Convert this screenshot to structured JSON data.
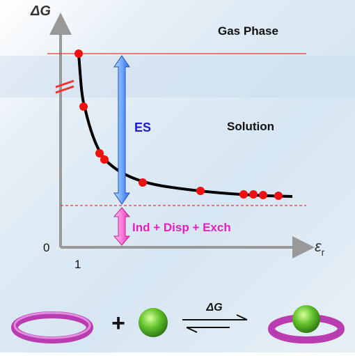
{
  "plot": {
    "y_axis_label": "ΔG",
    "x_axis_symbol": "ε",
    "x_axis_subscript": "r",
    "origin_label": "0",
    "x_marker_label": "1",
    "gas_label": "Gas Phase",
    "solution_label": "Solution",
    "es_label": "ES",
    "ind_label": "Ind + Disp + Exch"
  },
  "scheme": {
    "plus": "+",
    "arrow_label": "ΔG"
  }
}
